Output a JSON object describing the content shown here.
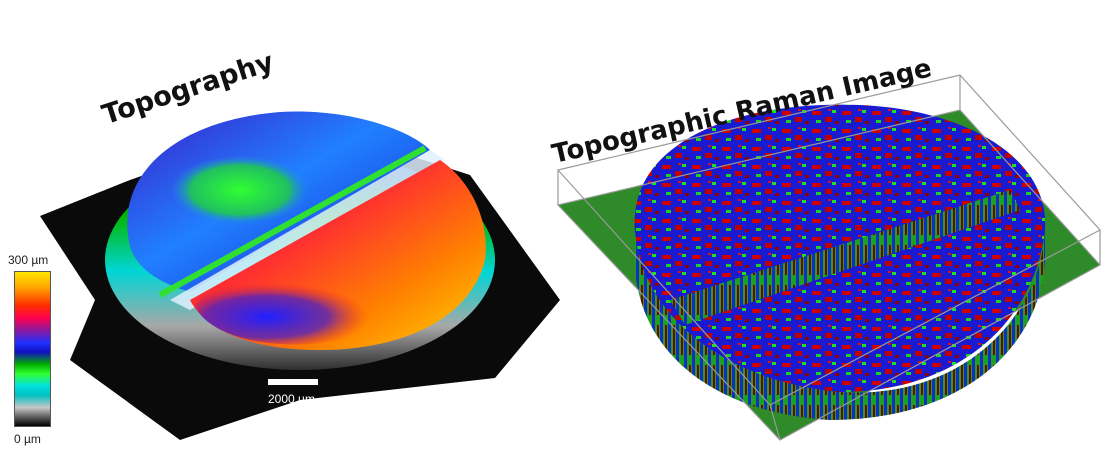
{
  "topography": {
    "title": "Topography",
    "colorbar": {
      "max_label": "300 µm",
      "min_label": "0 µm"
    },
    "scalebar_label": "2000 µm"
  },
  "raman": {
    "title": "Topographic Raman Image"
  },
  "colors": {
    "red": "#e00000",
    "blue": "#1a1aff",
    "green": "#10c810",
    "ground_green": "#2f8a2a",
    "yellow": "#ffd000",
    "black": "#000000"
  }
}
